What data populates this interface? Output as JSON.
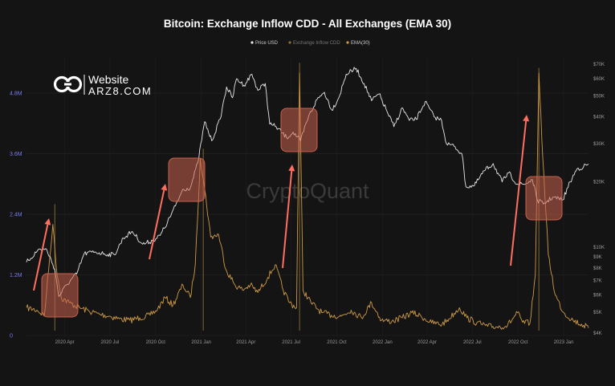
{
  "colors": {
    "background": "#141414",
    "price": "#e8e8e8",
    "inflow": "#8a6f3c",
    "ema": "#cf9a45",
    "box": "#c8614c",
    "arrow": "#ff6f61",
    "left_axis": "#7c7cf0"
  },
  "logo": {
    "line1": "Website",
    "line2": "ARZ8.COM",
    "icon": "link-logo-icon"
  },
  "watermark": "CryptoQuant",
  "chart_data": {
    "type": "line",
    "title": "Bitcoin: Exchange Inflow CDD - All Exchanges (EMA 30)",
    "legend": {
      "placement": "top-center",
      "entries": [
        "Price USD",
        "Exchange Inflow CDD",
        "EMA(30)"
      ]
    },
    "xlabel": "",
    "ylabel": "",
    "grid": true,
    "x_ticks": [
      "2020 Apr",
      "2020 Jul",
      "2020 Oct",
      "2021 Jan",
      "2021 Apr",
      "2021 Jul",
      "2021 Oct",
      "2022 Jan",
      "2022 Apr",
      "2022 Jul",
      "2022 Oct",
      "2023 Jan"
    ],
    "x_range": [
      "2020-01-15",
      "2023-02-20"
    ],
    "left_axis": {
      "ticks": [
        "0",
        "1.2M",
        "2.4M",
        "3.6M",
        "4.8M"
      ],
      "values": [
        0,
        1200000,
        2400000,
        3600000,
        4800000
      ],
      "range": [
        0,
        5500000
      ]
    },
    "right_axis": {
      "scale": "log",
      "ticks": [
        "$4K",
        "$5K",
        "$6K",
        "$7K",
        "$8K",
        "$9K",
        "$10K",
        "$20K",
        "$30K",
        "$40K",
        "$50K",
        "$60K",
        "$70K"
      ],
      "values": [
        4000,
        5000,
        6000,
        7000,
        8000,
        9000,
        10000,
        20000,
        30000,
        40000,
        50000,
        60000,
        70000
      ],
      "range": [
        3900,
        75000
      ]
    },
    "series": [
      {
        "name": "Price USD",
        "axis": "right",
        "x": [
          "2020-01-15",
          "2020-02-10",
          "2020-02-25",
          "2020-03-12",
          "2020-03-20",
          "2020-04-05",
          "2020-04-25",
          "2020-05-10",
          "2020-06-01",
          "2020-06-20",
          "2020-07-10",
          "2020-07-28",
          "2020-08-15",
          "2020-09-05",
          "2020-09-25",
          "2020-10-10",
          "2020-10-25",
          "2020-11-10",
          "2020-11-25",
          "2020-12-10",
          "2020-12-25",
          "2021-01-08",
          "2021-01-22",
          "2021-02-08",
          "2021-02-21",
          "2021-03-05",
          "2021-03-13",
          "2021-03-28",
          "2021-04-13",
          "2021-04-25",
          "2021-05-10",
          "2021-05-19",
          "2021-06-01",
          "2021-06-22",
          "2021-07-05",
          "2021-07-20",
          "2021-08-05",
          "2021-08-22",
          "2021-09-06",
          "2021-09-21",
          "2021-10-05",
          "2021-10-20",
          "2021-11-09",
          "2021-11-25",
          "2021-12-10",
          "2021-12-25",
          "2022-01-10",
          "2022-01-24",
          "2022-02-10",
          "2022-02-24",
          "2022-03-10",
          "2022-03-28",
          "2022-04-15",
          "2022-04-30",
          "2022-05-10",
          "2022-05-25",
          "2022-06-10",
          "2022-06-18",
          "2022-07-05",
          "2022-07-25",
          "2022-08-12",
          "2022-08-30",
          "2022-09-12",
          "2022-09-30",
          "2022-10-15",
          "2022-10-30",
          "2022-11-09",
          "2022-11-21",
          "2022-12-10",
          "2022-12-30",
          "2023-01-14",
          "2023-01-28",
          "2023-02-10",
          "2023-02-20"
        ],
        "values": [
          8500,
          9800,
          9700,
          7900,
          5900,
          6700,
          7500,
          9300,
          9500,
          9300,
          9200,
          11000,
          11800,
          10300,
          10700,
          11300,
          13000,
          15500,
          18500,
          18800,
          24500,
          38000,
          31000,
          39000,
          55000,
          49000,
          60000,
          56000,
          63000,
          53000,
          57000,
          37000,
          36000,
          32000,
          34000,
          31000,
          40000,
          48000,
          52000,
          43000,
          49000,
          63000,
          67000,
          57000,
          47500,
          51000,
          42500,
          36000,
          44000,
          38500,
          39000,
          47000,
          40000,
          38500,
          30000,
          29300,
          27000,
          19000,
          19200,
          22500,
          24300,
          20000,
          22000,
          19500,
          19500,
          20500,
          16500,
          15800,
          17000,
          16500,
          20000,
          23000,
          23500,
          24200
        ]
      },
      {
        "name": "EMA(30)",
        "axis": "left",
        "x": [
          "2020-01-15",
          "2020-02-05",
          "2020-02-20",
          "2020-03-08",
          "2020-03-15",
          "2020-03-25",
          "2020-04-10",
          "2020-05-01",
          "2020-05-20",
          "2020-06-10",
          "2020-07-01",
          "2020-07-20",
          "2020-08-10",
          "2020-08-30",
          "2020-09-20",
          "2020-10-05",
          "2020-10-20",
          "2020-11-05",
          "2020-11-25",
          "2020-12-10",
          "2020-12-20",
          "2020-12-30",
          "2021-01-08",
          "2021-01-20",
          "2021-02-05",
          "2021-02-20",
          "2021-03-10",
          "2021-03-25",
          "2021-04-10",
          "2021-04-25",
          "2021-05-15",
          "2021-05-30",
          "2021-06-15",
          "2021-06-28",
          "2021-07-12",
          "2021-07-18",
          "2021-07-25",
          "2021-08-10",
          "2021-09-01",
          "2021-09-20",
          "2021-10-10",
          "2021-10-30",
          "2021-11-20",
          "2021-12-10",
          "2021-12-30",
          "2022-01-20",
          "2022-02-10",
          "2022-03-01",
          "2022-03-20",
          "2022-04-10",
          "2022-05-01",
          "2022-05-15",
          "2022-06-05",
          "2022-06-20",
          "2022-07-10",
          "2022-08-01",
          "2022-08-20",
          "2022-09-10",
          "2022-09-30",
          "2022-10-10",
          "2022-10-25",
          "2022-11-05",
          "2022-11-12",
          "2022-11-20",
          "2022-12-01",
          "2022-12-15",
          "2023-01-01",
          "2023-01-20",
          "2023-02-10",
          "2023-02-20"
        ],
        "values": [
          550000,
          500000,
          400000,
          2200000,
          1350000,
          750000,
          650000,
          550000,
          480000,
          420000,
          380000,
          330000,
          300000,
          350000,
          400000,
          520000,
          750000,
          600000,
          1000000,
          750000,
          1400000,
          3500000,
          2900000,
          1950000,
          2000000,
          1300000,
          1000000,
          900000,
          1000000,
          850000,
          1150000,
          1400000,
          900000,
          650000,
          550000,
          5200000,
          900000,
          650000,
          450000,
          400000,
          380000,
          500000,
          350000,
          650000,
          300000,
          280000,
          350000,
          450000,
          380000,
          250000,
          220000,
          330000,
          550000,
          350000,
          250000,
          180000,
          170000,
          200000,
          450000,
          260000,
          240000,
          1200000,
          5200000,
          3500000,
          1600000,
          800000,
          450000,
          300000,
          200000,
          150000
        ]
      },
      {
        "name": "Exchange Inflow CDD",
        "axis": "left",
        "x": [
          "2020-03-12",
          "2021-01-05",
          "2021-07-18",
          "2022-11-12"
        ],
        "values": [
          2600000,
          3700000,
          5400000,
          5300000
        ]
      }
    ]
  }
}
